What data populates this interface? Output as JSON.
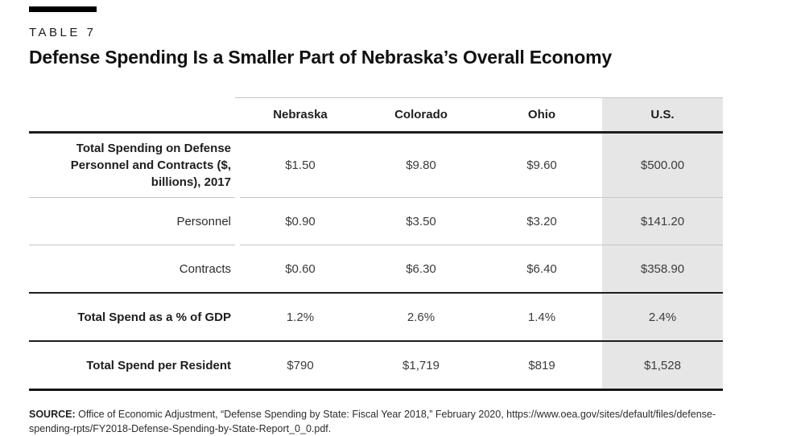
{
  "kicker": "TABLE 7",
  "title": "Defense Spending Is a Smaller Part of Nebraska’s Overall Economy",
  "table": {
    "columns": [
      "",
      "Nebraska",
      "Colorado",
      "Ohio",
      "U.S."
    ],
    "highlight_column": "U.S.",
    "rows": [
      {
        "label": "Total Spending on Defense Personnel and Contracts ($, billions), 2017",
        "bold": true,
        "values": [
          "$1.50",
          "$9.80",
          "$9.60",
          "$500.00"
        ]
      },
      {
        "label": "Personnel",
        "bold": false,
        "values": [
          "$0.90",
          "$3.50",
          "$3.20",
          "$141.20"
        ]
      },
      {
        "label": "Contracts",
        "bold": false,
        "values": [
          "$0.60",
          "$6.30",
          "$6.40",
          "$358.90"
        ]
      },
      {
        "label": "Total Spend as a % of GDP",
        "bold": true,
        "values": [
          "1.2%",
          "2.6%",
          "1.4%",
          "2.4%"
        ]
      },
      {
        "label": "Total Spend per Resident",
        "bold": true,
        "values": [
          "$790",
          "$1,719",
          "$819",
          "$1,528"
        ]
      }
    ]
  },
  "source": {
    "label": "SOURCE:",
    "text": " Office of Economic Adjustment, “Defense Spending by State: Fiscal Year 2018,” February 2020, https://www.oea.gov/sites/default/files/defense-spending-rpts/FY2018-Defense-Spending-by-State-Report_0_0.pdf."
  },
  "colors": {
    "highlight_bg": "#e6e6e6",
    "rule_dark": "#1d1d1b",
    "rule_light": "#c6c6c5",
    "kicker_bar": "#000000",
    "text": "#1d1d1b"
  }
}
